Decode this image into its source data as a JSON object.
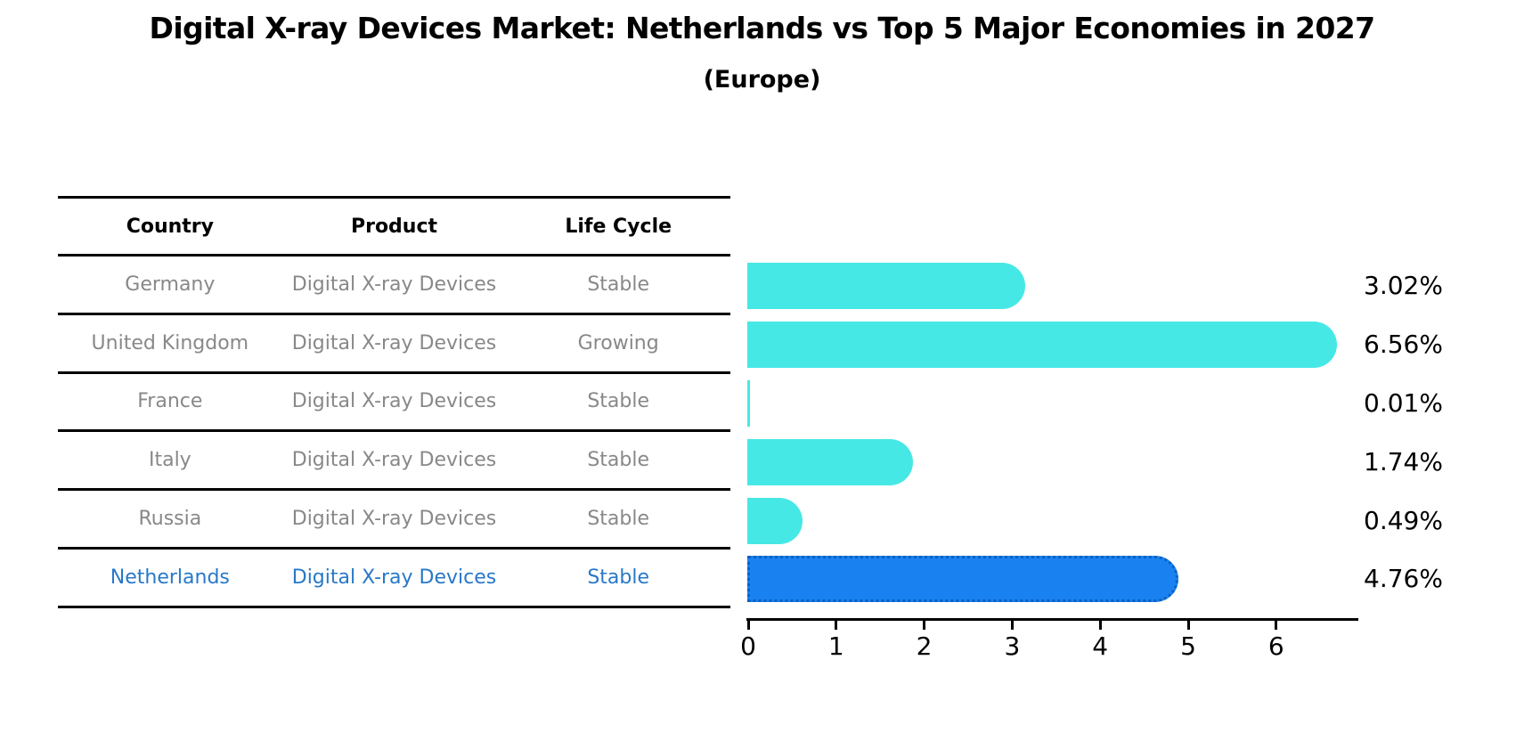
{
  "title": "Digital X-ray Devices Market: Netherlands vs Top 5 Major Economies in 2027",
  "subtitle": "(Europe)",
  "table": {
    "headers": [
      "Country",
      "Product",
      "Life Cycle"
    ],
    "rows": [
      {
        "country": "Germany",
        "product": "Digital X-ray Devices",
        "life_cycle": "Stable",
        "highlighted": false
      },
      {
        "country": "United Kingdom",
        "product": "Digital X-ray Devices",
        "life_cycle": "Growing",
        "highlighted": false
      },
      {
        "country": "France",
        "product": "Digital X-ray Devices",
        "life_cycle": "Stable",
        "highlighted": false
      },
      {
        "country": "Italy",
        "product": "Digital X-ray Devices",
        "life_cycle": "Stable",
        "highlighted": false
      },
      {
        "country": "Russia",
        "product": "Digital X-ray Devices",
        "life_cycle": "Stable",
        "highlighted": false
      },
      {
        "country": "Netherlands",
        "product": "Digital X-ray Devices",
        "life_cycle": "Stable",
        "highlighted": true
      }
    ]
  },
  "chart_data": {
    "type": "bar",
    "orientation": "horizontal",
    "title": "Digital X-ray Devices Market: Netherlands vs Top 5 Major Economies in 2027",
    "subtitle": "(Europe)",
    "categories": [
      "Germany",
      "United Kingdom",
      "France",
      "Italy",
      "Russia",
      "Netherlands"
    ],
    "values": [
      3.02,
      6.56,
      0.01,
      1.74,
      0.49,
      4.76
    ],
    "value_labels": [
      "3.02%",
      "6.56%",
      "0.01%",
      "1.74%",
      "0.49%",
      "4.76%"
    ],
    "x_ticks": [
      "0",
      "1",
      "2",
      "3",
      "4",
      "5",
      "6"
    ],
    "xlim": [
      0,
      6.9
    ],
    "xlabel": "",
    "ylabel": "",
    "grid": false,
    "legend": "none",
    "bar_color": "#46e8e6",
    "highlight_color": "#1a82f0",
    "highlight_index": 5,
    "highlight_text_color": "#2878c8"
  }
}
